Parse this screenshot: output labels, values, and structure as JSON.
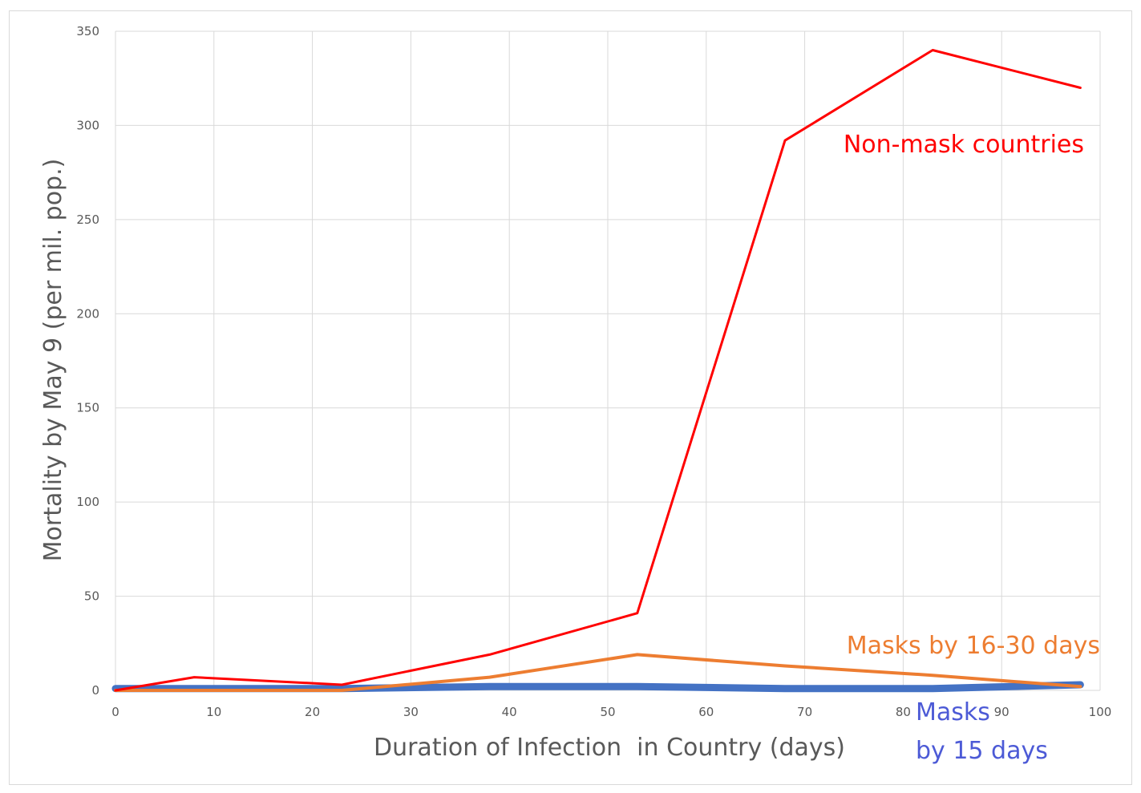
{
  "chart_data": {
    "type": "line",
    "xlabel": "Duration of Infection  in Country (days)",
    "ylabel": "Mortality by May 9 (per mil. pop.)",
    "xlim": [
      0,
      100
    ],
    "ylim": [
      0,
      350
    ],
    "xticks": [
      0,
      10,
      20,
      30,
      40,
      50,
      60,
      70,
      80,
      90,
      100
    ],
    "yticks": [
      0,
      50,
      100,
      150,
      200,
      250,
      300,
      350
    ],
    "grid": true,
    "legend": "none",
    "series": [
      {
        "name": "Non-mask countries",
        "color": "#ff0000",
        "x": [
          0,
          8,
          23,
          38,
          53,
          68,
          83,
          98
        ],
        "y": [
          0,
          7,
          3,
          19,
          41,
          292,
          340,
          320
        ]
      },
      {
        "name": "Masks by 16-30 days",
        "color": "#ed7d31",
        "x": [
          0,
          8,
          23,
          38,
          53,
          68,
          83,
          98
        ],
        "y": [
          0,
          0,
          0,
          7,
          19,
          13,
          8,
          2
        ]
      },
      {
        "name": "Masks by 15 days",
        "color": "#4472c4",
        "x": [
          0,
          8,
          23,
          38,
          53,
          68,
          83,
          98
        ],
        "y": [
          1,
          1,
          1,
          2,
          2,
          1,
          1,
          3
        ]
      }
    ],
    "annotations": [
      {
        "text": "Non-mask countries",
        "color": "#ff0000"
      },
      {
        "text": "Masks by 16-30 days",
        "color": "#ed7d31"
      },
      {
        "text_line1": "Masks",
        "text_line2": "by 15 days",
        "color": "#4c5ad6"
      }
    ]
  }
}
